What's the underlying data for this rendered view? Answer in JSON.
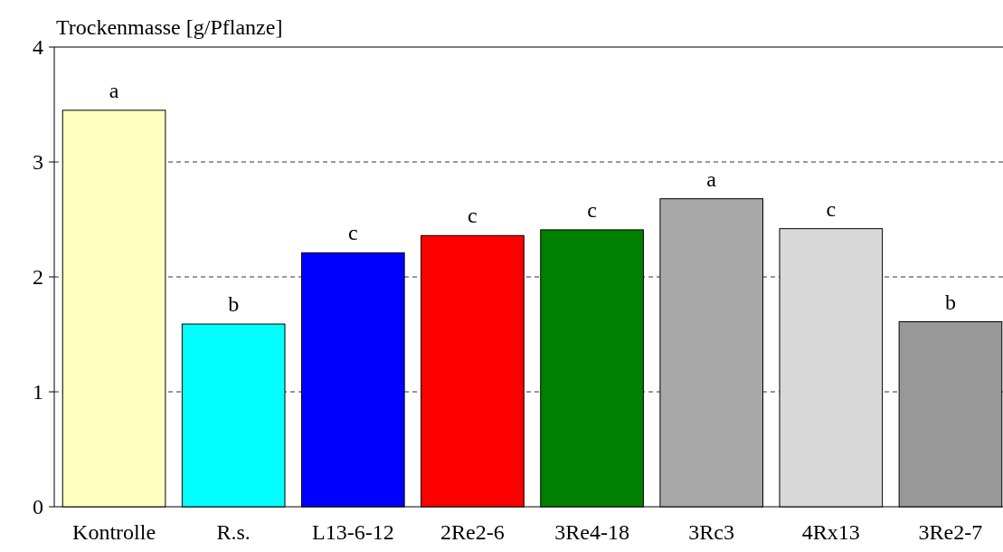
{
  "chart_data": {
    "type": "bar",
    "ylabel": "Trockenmasse [g/Pflanze]",
    "categories": [
      "Kontrolle",
      "R.s.",
      "L13-6-12",
      "2Re2-6",
      "3Re4-18",
      "3Rc3",
      "4Rx13",
      "3Re2-7"
    ],
    "values": [
      3.45,
      1.59,
      2.21,
      2.36,
      2.41,
      2.68,
      2.42,
      1.61
    ],
    "colors": [
      "#ffffc0",
      "#00ffff",
      "#0000ff",
      "#ff0000",
      "#008000",
      "#a8a8a8",
      "#d8d8d8",
      "#989898"
    ],
    "ylim": [
      0,
      4
    ],
    "yticks": [
      0,
      1,
      2,
      3,
      4
    ],
    "grid": "y",
    "annotations": [
      {
        "text": "a",
        "x": "Kontrolle",
        "y": 3.45
      },
      {
        "text": "b",
        "x": "R.s.",
        "y": 1.59
      },
      {
        "text": "c",
        "x": "L13-6-12",
        "y": 2.21
      },
      {
        "text": "c",
        "x": "2Re2-6",
        "y": 2.36
      },
      {
        "text": "c",
        "x": "3Re4-18",
        "y": 2.41
      },
      {
        "text": "a",
        "x": "3Rc3",
        "y": 2.68
      },
      {
        "text": "c",
        "x": "4Rx13",
        "y": 2.42
      },
      {
        "text": "b",
        "x": "3Re2-7",
        "y": 1.61
      }
    ]
  }
}
